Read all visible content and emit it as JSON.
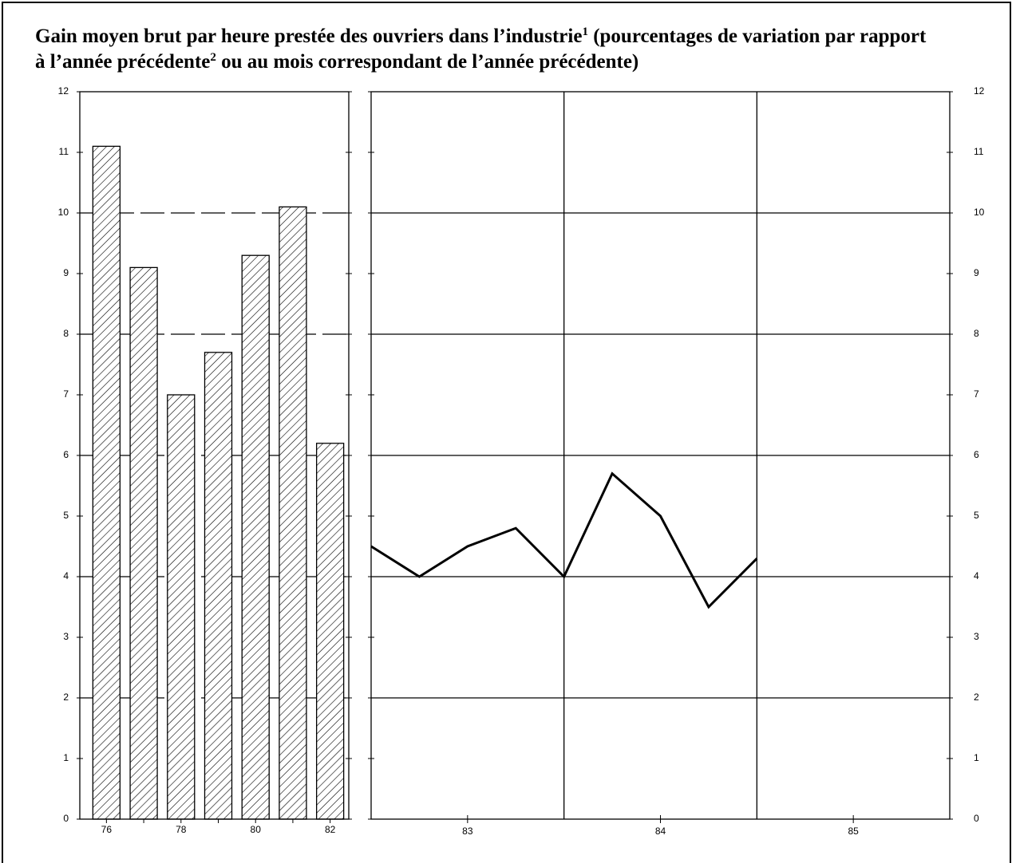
{
  "title": [
    "Gain moyen brut par heure prestée des ouvriers dans l’industrie",
    "(pourcentages de variation par rapport",
    "à l’année précédente",
    "ou au mois correspondant de l’année précédente)"
  ],
  "footnote_marks": [
    "1",
    "2"
  ],
  "chart_data": [
    {
      "type": "bar",
      "categories": [
        "76",
        null,
        "78",
        null,
        "80",
        null,
        "82"
      ],
      "values": [
        11.1,
        9.1,
        7.0,
        7.7,
        9.3,
        10.1,
        6.2
      ],
      "color": "#000000",
      "ylim": [
        0,
        12
      ],
      "yticks": [
        0,
        1,
        2,
        3,
        4,
        5,
        6,
        7,
        8,
        9,
        10,
        11,
        12
      ],
      "ygrid": [
        2,
        4,
        6,
        8,
        10
      ],
      "grid_style": "dashed",
      "ytick_side": "left"
    },
    {
      "type": "line",
      "x": [
        83,
        83.25,
        83.5,
        83.75,
        84,
        84.25,
        84.5,
        84.75,
        85
      ],
      "values": [
        4.5,
        4.0,
        4.5,
        4.8,
        4.0,
        5.7,
        5.0,
        3.5,
        4.3
      ],
      "color": "#000000",
      "xlim": [
        83,
        86
      ],
      "xticks": [
        {
          "value": 83.5,
          "label": "83"
        },
        {
          "value": 84.5,
          "label": "84"
        },
        {
          "value": 85.5,
          "label": "85"
        }
      ],
      "xgrid": [
        84,
        85
      ],
      "ylim": [
        0,
        12
      ],
      "yticks": [
        0,
        1,
        2,
        3,
        4,
        5,
        6,
        7,
        8,
        9,
        10,
        11,
        12
      ],
      "ygrid": [
        2,
        4,
        6,
        8,
        10
      ],
      "grid_style": "solid",
      "ytick_side": "right"
    }
  ]
}
